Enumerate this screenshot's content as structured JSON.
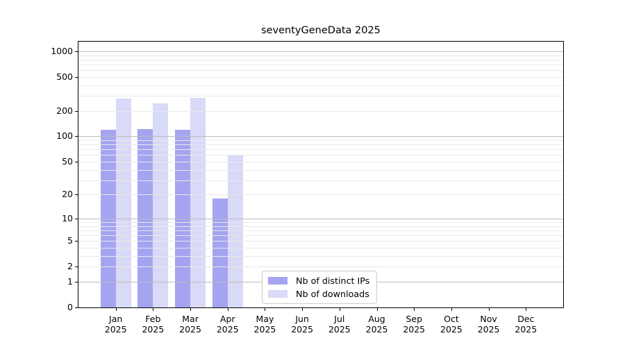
{
  "title": "seventyGeneData 2025",
  "chart_data": {
    "type": "bar",
    "title": "seventyGeneData 2025",
    "x_tick_months": [
      "Jan",
      "Feb",
      "Mar",
      "Apr",
      "May",
      "Jun",
      "Jul",
      "Aug",
      "Sep",
      "Oct",
      "Nov",
      "Dec"
    ],
    "x_tick_year": "2025",
    "series": [
      {
        "name": "Nb of distinct IPs",
        "color": "#a4a4f1",
        "values": [
          119,
          122,
          119,
          18,
          0,
          0,
          0,
          0,
          0,
          0,
          0,
          0
        ]
      },
      {
        "name": "Nb of downloads",
        "color": "#d9d9f8",
        "values": [
          280,
          245,
          285,
          59,
          0,
          0,
          0,
          0,
          0,
          0,
          0,
          0
        ]
      }
    ],
    "y_ticks": [
      0,
      1,
      2,
      5,
      10,
      20,
      50,
      100,
      200,
      500,
      1000
    ],
    "y_scale": "log10(value+1)",
    "ylim": [
      0,
      1300
    ],
    "grid": true,
    "grid_over_bars": true,
    "legend_position": "inside-bottom-left-of-center",
    "colors": {
      "axis": "#000000",
      "grid_major": "#bcbcbc",
      "grid_minor": "#e9e9e9",
      "background": "#ffffff",
      "legend_border": "#cccccc"
    }
  }
}
